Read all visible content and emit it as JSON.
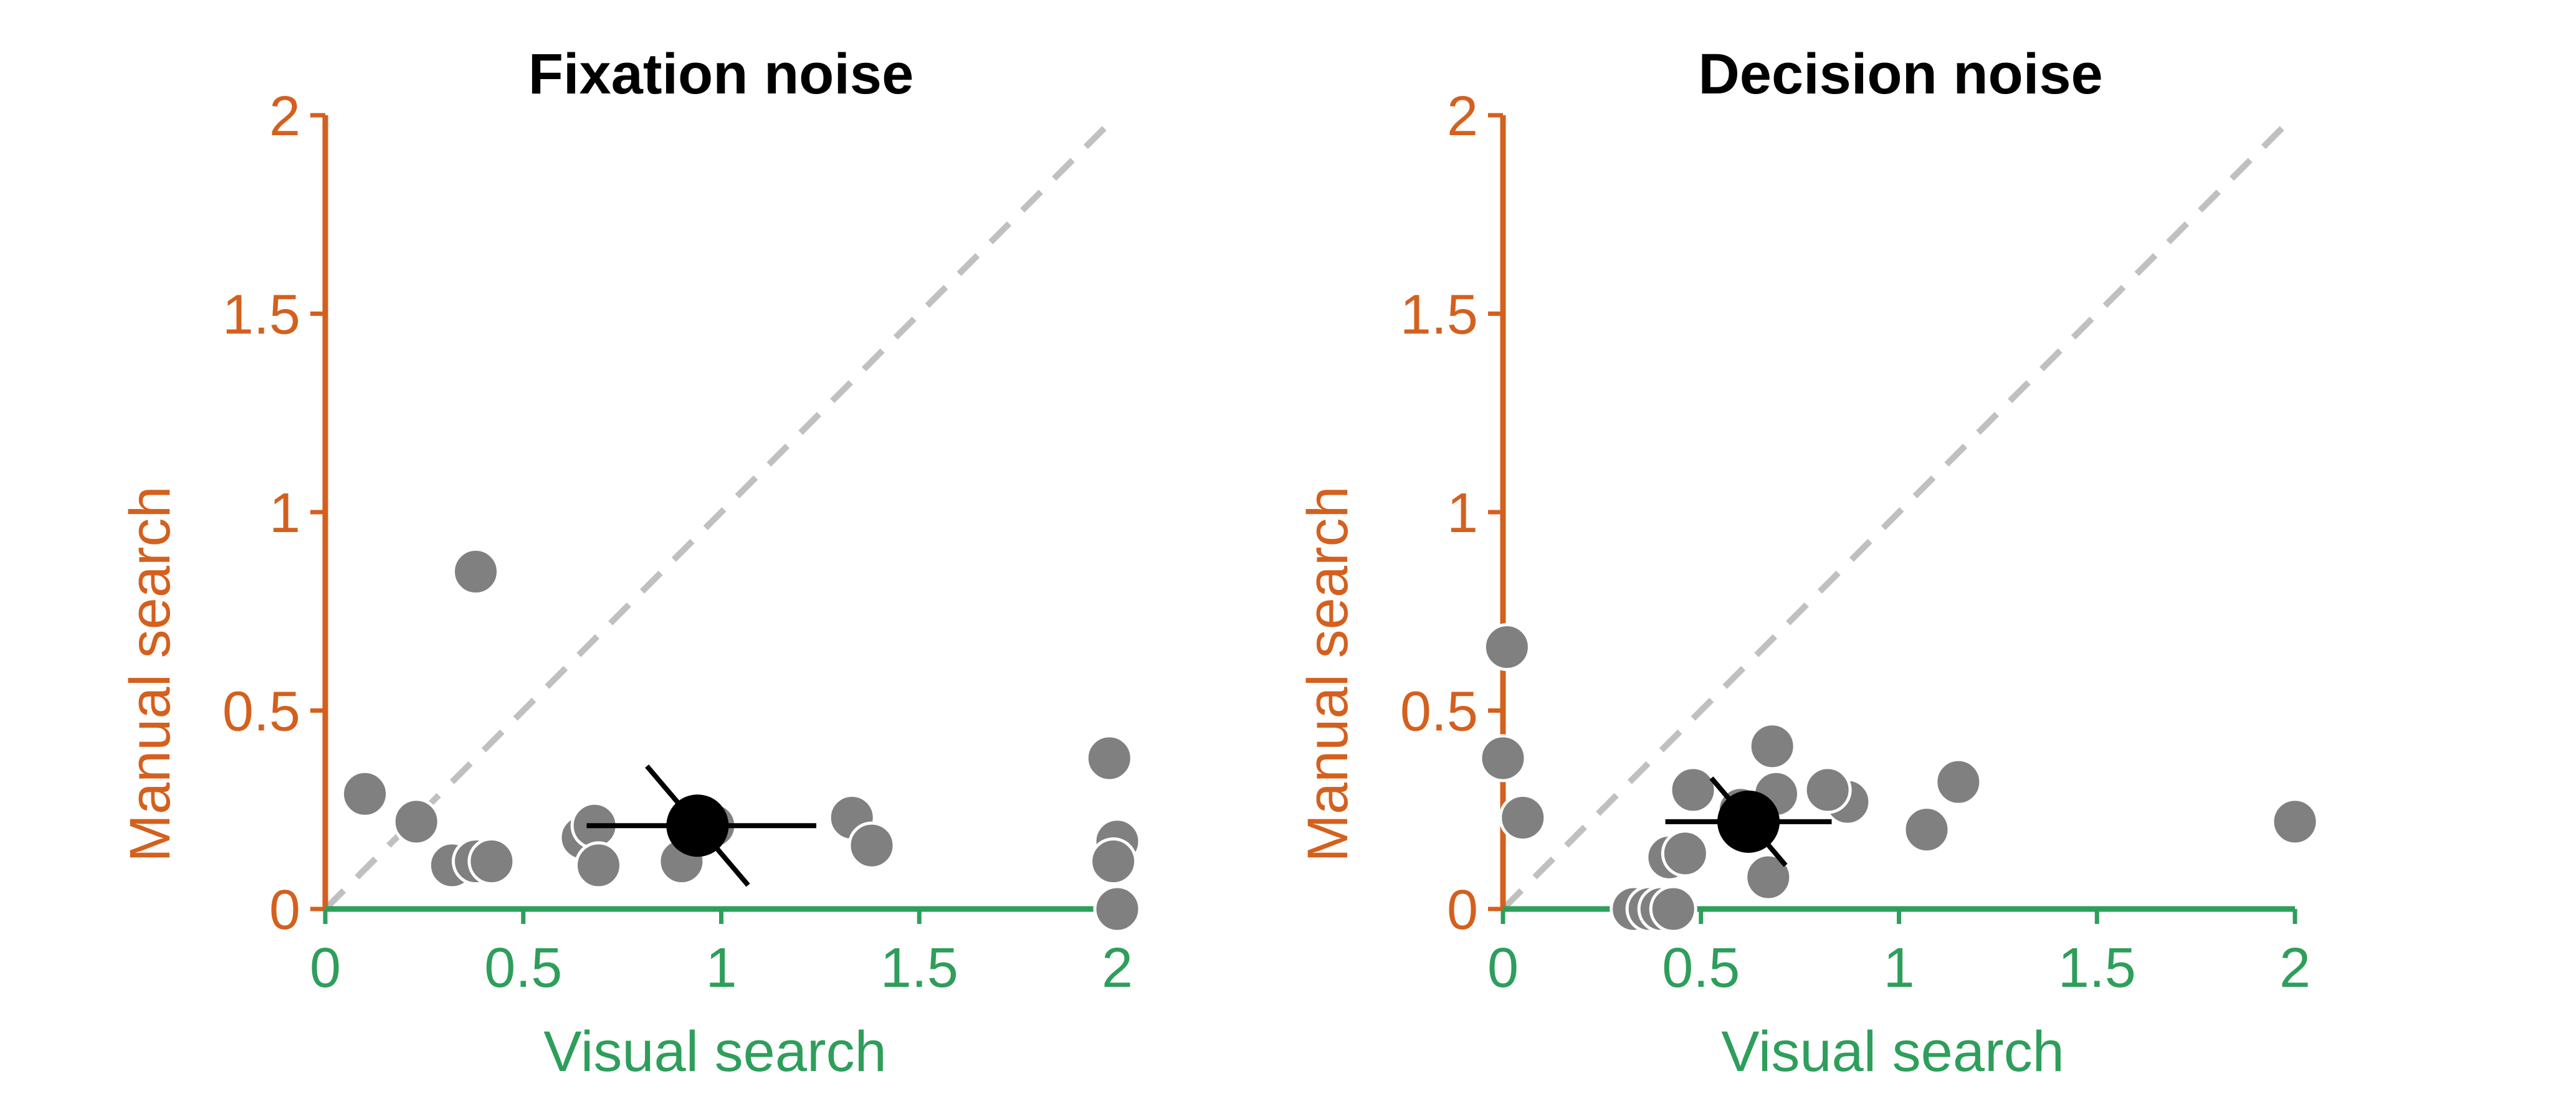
{
  "colors": {
    "y_axis": "#d4601e",
    "x_axis": "#2e9e5b",
    "points": "#808080",
    "point_outline": "#ffffff",
    "mean": "#000000",
    "diagonal": "#c0c0c0"
  },
  "chart_data": [
    {
      "type": "scatter",
      "title": "Fixation noise",
      "xlabel": "Visual search",
      "ylabel": "Manual search",
      "xlim": [
        0,
        2
      ],
      "ylim": [
        0,
        2
      ],
      "xticks": [
        "0",
        "0.5",
        "1",
        "1.5",
        "2"
      ],
      "yticks": [
        "0",
        "0.5",
        "1",
        "1.5",
        "2"
      ],
      "diagonal": true,
      "points": [
        {
          "x": 0.1,
          "y": 0.29
        },
        {
          "x": 0.23,
          "y": 0.22
        },
        {
          "x": 0.32,
          "y": 0.11
        },
        {
          "x": 0.38,
          "y": 0.85
        },
        {
          "x": 0.38,
          "y": 0.12
        },
        {
          "x": 0.42,
          "y": 0.12
        },
        {
          "x": 0.65,
          "y": 0.18
        },
        {
          "x": 0.68,
          "y": 0.21
        },
        {
          "x": 0.69,
          "y": 0.11
        },
        {
          "x": 0.9,
          "y": 0.12
        },
        {
          "x": 0.98,
          "y": 0.21
        },
        {
          "x": 1.33,
          "y": 0.23
        },
        {
          "x": 1.38,
          "y": 0.16
        },
        {
          "x": 1.98,
          "y": 0.38
        },
        {
          "x": 2.0,
          "y": 0.17
        },
        {
          "x": 1.99,
          "y": 0.12
        },
        {
          "x": 2.0,
          "y": 0.0
        }
      ],
      "mean": {
        "x": 0.94,
        "y": 0.21,
        "x_err": [
          0.66,
          1.24
        ],
        "y_err": [
          0.06,
          0.36
        ]
      }
    },
    {
      "type": "scatter",
      "title": "Decision noise",
      "xlabel": "Visual search",
      "ylabel": "Manual search",
      "xlim": [
        0,
        2
      ],
      "ylim": [
        0,
        2
      ],
      "xticks": [
        "0",
        "0.5",
        "1",
        "1.5",
        "2"
      ],
      "yticks": [
        "0",
        "0.5",
        "1",
        "1.5",
        "2"
      ],
      "diagonal": true,
      "points": [
        {
          "x": 0.01,
          "y": 0.66
        },
        {
          "x": 0.0,
          "y": 0.38
        },
        {
          "x": 0.05,
          "y": 0.23
        },
        {
          "x": 0.33,
          "y": 0.0
        },
        {
          "x": 0.37,
          "y": 0.0
        },
        {
          "x": 0.4,
          "y": 0.0
        },
        {
          "x": 0.43,
          "y": 0.0
        },
        {
          "x": 0.42,
          "y": 0.13
        },
        {
          "x": 0.46,
          "y": 0.14
        },
        {
          "x": 0.48,
          "y": 0.3
        },
        {
          "x": 0.6,
          "y": 0.25
        },
        {
          "x": 0.63,
          "y": 0.2
        },
        {
          "x": 0.67,
          "y": 0.08
        },
        {
          "x": 0.68,
          "y": 0.41
        },
        {
          "x": 0.69,
          "y": 0.29
        },
        {
          "x": 0.87,
          "y": 0.27
        },
        {
          "x": 0.82,
          "y": 0.3
        },
        {
          "x": 1.07,
          "y": 0.2
        },
        {
          "x": 1.15,
          "y": 0.32
        },
        {
          "x": 2.0,
          "y": 0.22
        }
      ],
      "mean": {
        "x": 0.62,
        "y": 0.22,
        "x_err": [
          0.41,
          0.83
        ],
        "y_err": [
          0.11,
          0.33
        ]
      }
    }
  ]
}
